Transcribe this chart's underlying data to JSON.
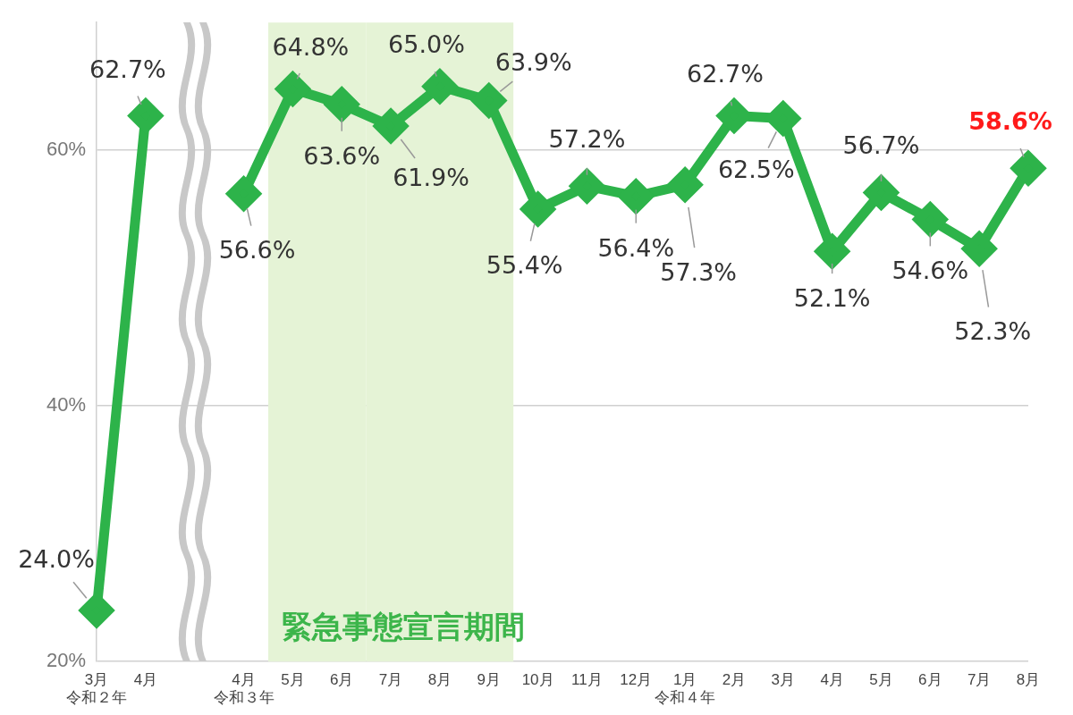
{
  "chart_data": {
    "type": "line",
    "categories": [
      "3月令和２年",
      "4月",
      null,
      "4月令和３年",
      "5月",
      "6月",
      "7月",
      "8月",
      "9月",
      "10月",
      "11月",
      "12月",
      "1月令和４年",
      "2月",
      "3月",
      "4月",
      "5月",
      "6月",
      "7月",
      "8月"
    ],
    "series": [
      {
        "color": "#2db34a",
        "values": [
          24.0,
          62.7,
          null,
          56.6,
          64.8,
          63.6,
          61.9,
          65.0,
          63.9,
          55.4,
          57.2,
          56.4,
          57.3,
          62.7,
          62.5,
          52.1,
          56.7,
          54.6,
          52.3,
          58.6
        ],
        "value_labels": [
          "24.0%",
          "62.7%",
          null,
          "56.6%",
          "64.8%",
          "63.6%",
          "61.9%",
          "65.0%",
          "63.9%",
          "55.4%",
          "57.2%",
          "56.4%",
          "57.3%",
          "62.7%",
          "62.5%",
          "52.1%",
          "56.7%",
          "54.6%",
          "52.3%",
          "58.6%"
        ]
      }
    ],
    "ylim": [
      20,
      70
    ],
    "yticks": [
      {
        "value": 20,
        "label": "20%"
      },
      {
        "value": 40,
        "label": "40%"
      },
      {
        "value": 60,
        "label": "60%"
      }
    ],
    "grid": "y",
    "marker": "diamond",
    "line_style": "solid",
    "legend": false,
    "bands": [
      {
        "axis": "x",
        "from": "5月",
        "to": "6月",
        "label": "緊急事態宣言期間",
        "color": "#e5f3d6"
      },
      {
        "axis": "x",
        "from": "7月",
        "to": "9月",
        "color": "#e5f3d6"
      }
    ]
  }
}
